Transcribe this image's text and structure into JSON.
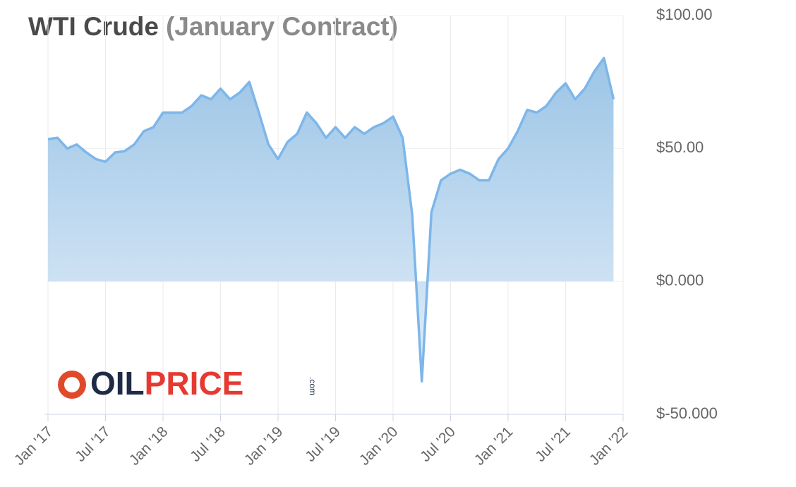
{
  "chart_data": {
    "type": "area-line",
    "title": "WTI Crude",
    "subtitle": "(January Contract)",
    "logo": {
      "part1": "OIL",
      "part2": "PRICE",
      "suffix": ".com"
    },
    "x": [
      "2017-01",
      "2017-02",
      "2017-03",
      "2017-04",
      "2017-05",
      "2017-06",
      "2017-07",
      "2017-08",
      "2017-09",
      "2017-10",
      "2017-11",
      "2017-12",
      "2018-01",
      "2018-02",
      "2018-03",
      "2018-04",
      "2018-05",
      "2018-06",
      "2018-07",
      "2018-08",
      "2018-09",
      "2018-10",
      "2018-11",
      "2018-12",
      "2019-01",
      "2019-02",
      "2019-03",
      "2019-04",
      "2019-05",
      "2019-06",
      "2019-07",
      "2019-08",
      "2019-09",
      "2019-10",
      "2019-11",
      "2019-12",
      "2020-01",
      "2020-02",
      "2020-03",
      "2020-04",
      "2020-05",
      "2020-06",
      "2020-07",
      "2020-08",
      "2020-09",
      "2020-10",
      "2020-11",
      "2020-12",
      "2021-01",
      "2021-02",
      "2021-03",
      "2021-04",
      "2021-05",
      "2021-06",
      "2021-07",
      "2021-08",
      "2021-09",
      "2021-10",
      "2021-11",
      "2021-12"
    ],
    "values": [
      53.5,
      54,
      50,
      51.5,
      48.5,
      46,
      45,
      48.5,
      49,
      51.5,
      56.5,
      58,
      63.5,
      63.5,
      63.5,
      66,
      70,
      68.5,
      72.5,
      68.5,
      71,
      75,
      63.5,
      51.5,
      46,
      52.5,
      55.5,
      63.5,
      59.5,
      54,
      58,
      54,
      58,
      55.5,
      58,
      59.5,
      62,
      54,
      25,
      -37.6,
      26,
      38,
      40.5,
      42,
      40.5,
      38,
      38,
      46,
      50,
      56.5,
      64.5,
      63.5,
      66,
      71,
      74.5,
      68.5,
      72.5,
      79,
      84,
      68.5
    ],
    "color": "#7db6ea",
    "xlim": [
      "2017-01",
      "2022-01"
    ],
    "xticks": [
      {
        "value": "2017-01",
        "label": "Jan '17"
      },
      {
        "value": "2017-07",
        "label": "Jul '17"
      },
      {
        "value": "2018-01",
        "label": "Jan '18"
      },
      {
        "value": "2018-07",
        "label": "Jul '18"
      },
      {
        "value": "2019-01",
        "label": "Jan '19"
      },
      {
        "value": "2019-07",
        "label": "Jul '19"
      },
      {
        "value": "2020-01",
        "label": "Jan '20"
      },
      {
        "value": "2020-07",
        "label": "Jul '20"
      },
      {
        "value": "2021-01",
        "label": "Jan '21"
      },
      {
        "value": "2021-07",
        "label": "Jul '21"
      },
      {
        "value": "2022-01",
        "label": "Jan '22"
      }
    ],
    "ylim": [
      -50,
      100
    ],
    "yticks": [
      {
        "value": -50,
        "label": "$-50.000"
      },
      {
        "value": 0,
        "label": "$0.000"
      },
      {
        "value": 50,
        "label": "$50.00"
      },
      {
        "value": 100,
        "label": "$100.00"
      }
    ],
    "grid": true
  }
}
